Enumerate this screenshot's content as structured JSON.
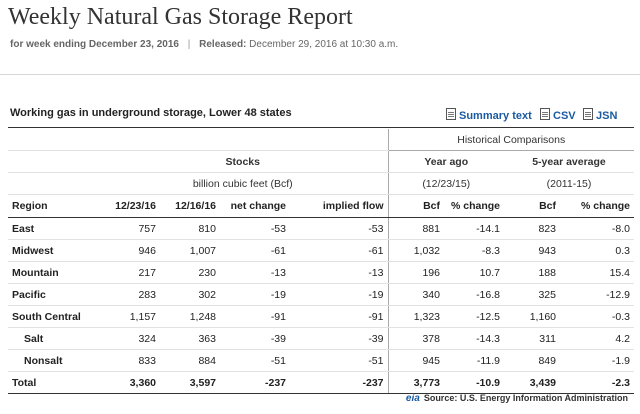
{
  "page": {
    "title": "Weekly Natural Gas Storage Report",
    "week_label": "for week ending December 23, 2016",
    "released_label": "Released:",
    "released_value": "December 29, 2016 at 10:30 a.m.",
    "separator": "|"
  },
  "table_header": {
    "subtitle": "Working gas in underground storage, Lower 48 states",
    "downloads": [
      "Summary text",
      "CSV",
      "JSN"
    ],
    "historical": "Historical Comparisons",
    "stocks": "Stocks",
    "stocks_unit": "billion cubic feet (Bcf)",
    "year_ago": "Year ago",
    "year_ago_date": "(12/23/15)",
    "five_year": "5-year average",
    "five_year_range": "(2011-15)",
    "columns": [
      "Region",
      "12/23/16",
      "12/16/16",
      "net change",
      "implied flow",
      "Bcf",
      "% change",
      "Bcf",
      "% change"
    ]
  },
  "rows": [
    {
      "region": "East",
      "c1": "757",
      "c2": "810",
      "net": "-53",
      "flow": "-53",
      "ya_bcf": "881",
      "ya_pct": "-14.1",
      "fy_bcf": "823",
      "fy_pct": "-8.0"
    },
    {
      "region": "Midwest",
      "c1": "946",
      "c2": "1,007",
      "net": "-61",
      "flow": "-61",
      "ya_bcf": "1,032",
      "ya_pct": "-8.3",
      "fy_bcf": "943",
      "fy_pct": "0.3"
    },
    {
      "region": "Mountain",
      "c1": "217",
      "c2": "230",
      "net": "-13",
      "flow": "-13",
      "ya_bcf": "196",
      "ya_pct": "10.7",
      "fy_bcf": "188",
      "fy_pct": "15.4"
    },
    {
      "region": "Pacific",
      "c1": "283",
      "c2": "302",
      "net": "-19",
      "flow": "-19",
      "ya_bcf": "340",
      "ya_pct": "-16.8",
      "fy_bcf": "325",
      "fy_pct": "-12.9"
    },
    {
      "region": "South Central",
      "c1": "1,157",
      "c2": "1,248",
      "net": "-91",
      "flow": "-91",
      "ya_bcf": "1,323",
      "ya_pct": "-12.5",
      "fy_bcf": "1,160",
      "fy_pct": "-0.3"
    },
    {
      "region": "Salt",
      "c1": "324",
      "c2": "363",
      "net": "-39",
      "flow": "-39",
      "ya_bcf": "378",
      "ya_pct": "-14.3",
      "fy_bcf": "311",
      "fy_pct": "4.2"
    },
    {
      "region": "Nonsalt",
      "c1": "833",
      "c2": "884",
      "net": "-51",
      "flow": "-51",
      "ya_bcf": "945",
      "ya_pct": "-11.9",
      "fy_bcf": "849",
      "fy_pct": "-1.9"
    },
    {
      "region": "Total",
      "c1": "3,360",
      "c2": "3,597",
      "net": "-237",
      "flow": "-237",
      "ya_bcf": "3,773",
      "ya_pct": "-10.9",
      "fy_bcf": "3,439",
      "fy_pct": "-2.3"
    }
  ],
  "footer": {
    "logo": "eia",
    "source": "Source:  U.S. Energy Information Administration"
  }
}
